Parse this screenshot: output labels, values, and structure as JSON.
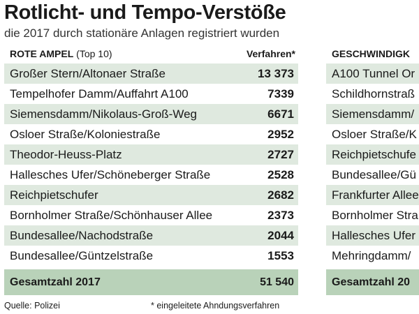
{
  "title": "Rotlicht- und Tempo-Verstöße",
  "subtitle": "die 2017 durch stationäre Anlagen registriert wurden",
  "colors": {
    "row_shade": "#dfe9df",
    "total_band": "#b9d2b9",
    "text": "#1a1a1a"
  },
  "chart_data": [
    {
      "type": "table",
      "header": {
        "name_bold": "ROTE AMPEL",
        "name_suffix": "(Top 10)",
        "value": "Verfahren*"
      },
      "rows": [
        {
          "name": "Großer Stern/Altonaer Straße",
          "value": "13 373"
        },
        {
          "name": "Tempelhofer Damm/Auffahrt A100",
          "value": "7339"
        },
        {
          "name": "Siemensdamm/Nikolaus-Groß-Weg",
          "value": "6671"
        },
        {
          "name": "Osloer Straße/Koloniestraße",
          "value": "2952"
        },
        {
          "name": "Theodor-Heuss-Platz",
          "value": "2727"
        },
        {
          "name": "Hallesches Ufer/Schöneberger Straße",
          "value": "2528"
        },
        {
          "name": "Reichpietschufer",
          "value": "2682"
        },
        {
          "name": "Bornholmer Straße/Schönhauser Allee",
          "value": "2373"
        },
        {
          "name": "Bundesallee/Nachodstraße",
          "value": "2044"
        },
        {
          "name": "Bundesallee/Güntzelstraße",
          "value": "1553"
        }
      ],
      "total": {
        "label": "Gesamtzahl 2017",
        "value": "51 540"
      }
    },
    {
      "type": "table",
      "header": {
        "name_bold": "GESCHWINDIGK",
        "name_suffix": "",
        "value": ""
      },
      "rows": [
        {
          "name": "A100 Tunnel Or",
          "value": ""
        },
        {
          "name": "Schildhornstraß",
          "value": ""
        },
        {
          "name": "Siemensdamm/",
          "value": ""
        },
        {
          "name": "Osloer Straße/K",
          "value": ""
        },
        {
          "name": "Reichpietschufe",
          "value": ""
        },
        {
          "name": "Bundesallee/Gü",
          "value": ""
        },
        {
          "name": "Frankfurter Allee",
          "value": ""
        },
        {
          "name": "Bornholmer Stra",
          "value": ""
        },
        {
          "name": "Hallesches Ufer",
          "value": ""
        },
        {
          "name": "Mehringdamm/",
          "value": ""
        }
      ],
      "total": {
        "label": "Gesamtzahl 20",
        "value": ""
      }
    }
  ],
  "footer": {
    "source": "Quelle: Polizei",
    "note": "* eingeleitete Ahndungsverfahren"
  }
}
